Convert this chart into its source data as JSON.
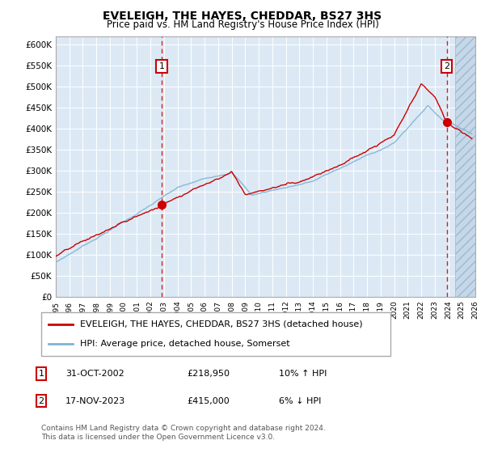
{
  "title": "EVELEIGH, THE HAYES, CHEDDAR, BS27 3HS",
  "subtitle": "Price paid vs. HM Land Registry's House Price Index (HPI)",
  "legend_line1": "EVELEIGH, THE HAYES, CHEDDAR, BS27 3HS (detached house)",
  "legend_line2": "HPI: Average price, detached house, Somerset",
  "annotation1_label": "1",
  "annotation1_date": "31-OCT-2002",
  "annotation1_price": "£218,950",
  "annotation1_hpi": "10% ↑ HPI",
  "annotation2_label": "2",
  "annotation2_date": "17-NOV-2023",
  "annotation2_price": "£415,000",
  "annotation2_hpi": "6% ↓ HPI",
  "footnote": "Contains HM Land Registry data © Crown copyright and database right 2024.\nThis data is licensed under the Open Government Licence v3.0.",
  "red_color": "#cc0000",
  "blue_color": "#7fb3d3",
  "background_color": "#dce9f5",
  "ylim": [
    0,
    620000
  ],
  "yticks": [
    0,
    50000,
    100000,
    150000,
    200000,
    250000,
    300000,
    350000,
    400000,
    450000,
    500000,
    550000,
    600000
  ],
  "sale1_x": 2002.83,
  "sale1_y": 218950,
  "sale2_x": 2023.88,
  "sale2_y": 415000,
  "xlim_left": 1995,
  "xlim_right": 2026,
  "hatch_start": 2024.5
}
